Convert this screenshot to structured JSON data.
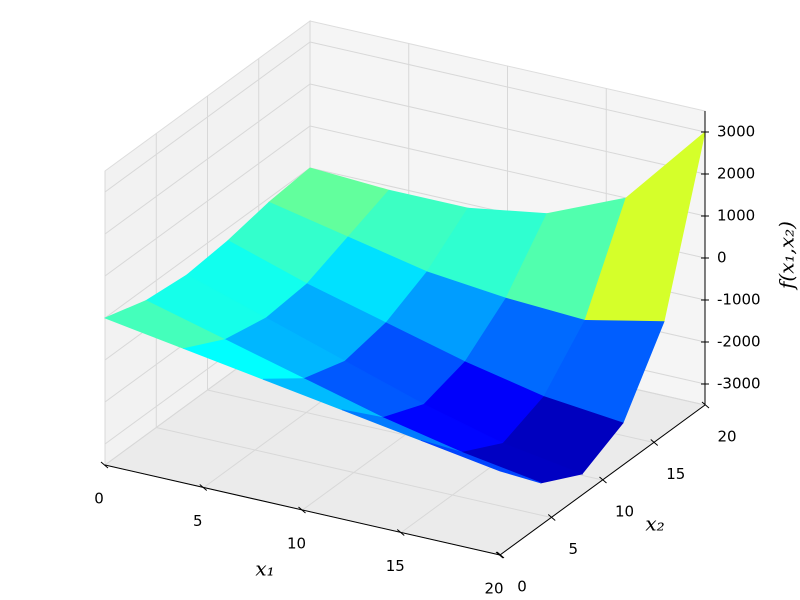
{
  "chart_data": {
    "type": "surface",
    "x": [
      0,
      4,
      8,
      12,
      16,
      20
    ],
    "y": [
      0,
      4,
      8,
      12,
      16,
      20
    ],
    "z": [
      [
        0,
        -300,
        -600,
        -900,
        -1200,
        -1500
      ],
      [
        -300,
        -800,
        -1300,
        -1800,
        -2200,
        -2500
      ],
      [
        -400,
        -1000,
        -1600,
        -2200,
        -2700,
        -3000
      ],
      [
        -300,
        -900,
        -1400,
        -1900,
        -2300,
        -2500
      ],
      [
        -100,
        -500,
        -900,
        -1100,
        -1200,
        -800
      ],
      [
        0,
        -100,
        -100,
        200,
        1000,
        3000
      ]
    ],
    "xlim": [
      0,
      20
    ],
    "ylim": [
      0,
      20
    ],
    "zlim": [
      -3500,
      3500
    ],
    "xticks": [
      0,
      5,
      10,
      15,
      20
    ],
    "yticks": [
      0,
      5,
      10,
      15,
      20
    ],
    "zticks": [
      -3000,
      -2000,
      -1000,
      0,
      1000,
      2000,
      3000
    ],
    "xlabel": "x₁",
    "ylabel": "x₂",
    "zlabel": "f(x₁,x₂)",
    "colormap": "jet",
    "grid": true
  }
}
